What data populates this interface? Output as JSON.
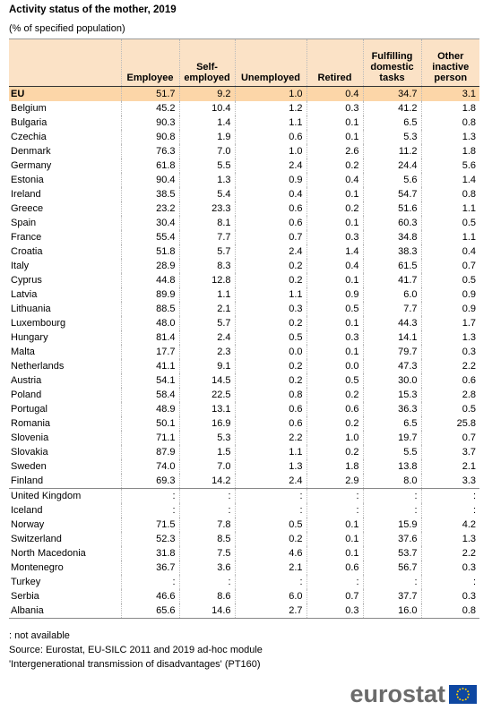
{
  "header": {
    "title": "Activity status of the mother, 2019",
    "subtitle": "(% of specified population)"
  },
  "table": {
    "columns": [
      [
        "Employee"
      ],
      [
        "Self-",
        "employed"
      ],
      [
        "Unemployed"
      ],
      [
        "Retired"
      ],
      [
        "Fulfilling",
        "domestic",
        "tasks"
      ],
      [
        "Other",
        "inactive",
        "person"
      ]
    ],
    "row_groups": [
      {
        "rows": [
          {
            "label": "EU",
            "cells": [
              "51.7",
              "9.2",
              "1.0",
              "0.4",
              "34.7",
              "3.1"
            ]
          },
          {
            "label": "Belgium",
            "cells": [
              "45.2",
              "10.4",
              "1.2",
              "0.3",
              "41.2",
              "1.8"
            ]
          },
          {
            "label": "Bulgaria",
            "cells": [
              "90.3",
              "1.4",
              "1.1",
              "0.1",
              "6.5",
              "0.8"
            ]
          },
          {
            "label": "Czechia",
            "cells": [
              "90.8",
              "1.9",
              "0.6",
              "0.1",
              "5.3",
              "1.3"
            ]
          },
          {
            "label": "Denmark",
            "cells": [
              "76.3",
              "7.0",
              "1.0",
              "2.6",
              "11.2",
              "1.8"
            ]
          },
          {
            "label": "Germany",
            "cells": [
              "61.8",
              "5.5",
              "2.4",
              "0.2",
              "24.4",
              "5.6"
            ]
          },
          {
            "label": "Estonia",
            "cells": [
              "90.4",
              "1.3",
              "0.9",
              "0.4",
              "5.6",
              "1.4"
            ]
          },
          {
            "label": "Ireland",
            "cells": [
              "38.5",
              "5.4",
              "0.4",
              "0.1",
              "54.7",
              "0.8"
            ]
          },
          {
            "label": "Greece",
            "cells": [
              "23.2",
              "23.3",
              "0.6",
              "0.2",
              "51.6",
              "1.1"
            ]
          },
          {
            "label": "Spain",
            "cells": [
              "30.4",
              "8.1",
              "0.6",
              "0.1",
              "60.3",
              "0.5"
            ]
          },
          {
            "label": "France",
            "cells": [
              "55.4",
              "7.7",
              "0.7",
              "0.3",
              "34.8",
              "1.1"
            ]
          },
          {
            "label": "Croatia",
            "cells": [
              "51.8",
              "5.7",
              "2.4",
              "1.4",
              "38.3",
              "0.4"
            ]
          },
          {
            "label": "Italy",
            "cells": [
              "28.9",
              "8.3",
              "0.2",
              "0.4",
              "61.5",
              "0.7"
            ]
          },
          {
            "label": "Cyprus",
            "cells": [
              "44.8",
              "12.8",
              "0.2",
              "0.1",
              "41.7",
              "0.5"
            ]
          },
          {
            "label": "Latvia",
            "cells": [
              "89.9",
              "1.1",
              "1.1",
              "0.9",
              "6.0",
              "0.9"
            ]
          },
          {
            "label": "Lithuania",
            "cells": [
              "88.5",
              "2.1",
              "0.3",
              "0.5",
              "7.7",
              "0.9"
            ]
          },
          {
            "label": "Luxembourg",
            "cells": [
              "48.0",
              "5.7",
              "0.2",
              "0.1",
              "44.3",
              "1.7"
            ]
          },
          {
            "label": "Hungary",
            "cells": [
              "81.4",
              "2.4",
              "0.5",
              "0.3",
              "14.1",
              "1.3"
            ]
          },
          {
            "label": "Malta",
            "cells": [
              "17.7",
              "2.3",
              "0.0",
              "0.1",
              "79.7",
              "0.3"
            ]
          },
          {
            "label": "Netherlands",
            "cells": [
              "41.1",
              "9.1",
              "0.2",
              "0.0",
              "47.3",
              "2.2"
            ]
          },
          {
            "label": "Austria",
            "cells": [
              "54.1",
              "14.5",
              "0.2",
              "0.5",
              "30.0",
              "0.6"
            ]
          },
          {
            "label": "Poland",
            "cells": [
              "58.4",
              "22.5",
              "0.8",
              "0.2",
              "15.3",
              "2.8"
            ]
          },
          {
            "label": "Portugal",
            "cells": [
              "48.9",
              "13.1",
              "0.6",
              "0.6",
              "36.3",
              "0.5"
            ]
          },
          {
            "label": "Romania",
            "cells": [
              "50.1",
              "16.9",
              "0.6",
              "0.2",
              "6.5",
              "25.8"
            ]
          },
          {
            "label": "Slovenia",
            "cells": [
              "71.1",
              "5.3",
              "2.2",
              "1.0",
              "19.7",
              "0.7"
            ]
          },
          {
            "label": "Slovakia",
            "cells": [
              "87.9",
              "1.5",
              "1.1",
              "0.2",
              "5.5",
              "3.7"
            ]
          },
          {
            "label": "Sweden",
            "cells": [
              "74.0",
              "7.0",
              "1.3",
              "1.8",
              "13.8",
              "2.1"
            ]
          },
          {
            "label": "Finland",
            "cells": [
              "69.3",
              "14.2",
              "2.4",
              "2.9",
              "8.0",
              "3.3"
            ]
          }
        ]
      },
      {
        "rows": [
          {
            "label": "United Kingdom",
            "cells": [
              ":",
              ":",
              ":",
              ":",
              ":",
              ":"
            ]
          },
          {
            "label": "Iceland",
            "cells": [
              ":",
              ":",
              ":",
              ":",
              ":",
              ":"
            ]
          },
          {
            "label": "Norway",
            "cells": [
              "71.5",
              "7.8",
              "0.5",
              "0.1",
              "15.9",
              "4.2"
            ]
          },
          {
            "label": "Switzerland",
            "cells": [
              "52.3",
              "8.5",
              "0.2",
              "0.1",
              "37.6",
              "1.3"
            ]
          },
          {
            "label": "North Macedonia",
            "cells": [
              "31.8",
              "7.5",
              "4.6",
              "0.1",
              "53.7",
              "2.2"
            ]
          },
          {
            "label": "Montenegro",
            "cells": [
              "36.7",
              "3.6",
              "2.1",
              "0.6",
              "56.7",
              "0.3"
            ]
          },
          {
            "label": "Turkey",
            "cells": [
              ":",
              ":",
              ":",
              ":",
              ":",
              ":"
            ]
          },
          {
            "label": "Serbia",
            "cells": [
              "46.6",
              "8.6",
              "6.0",
              "0.7",
              "37.7",
              "0.3"
            ]
          },
          {
            "label": "Albania",
            "cells": [
              "65.6",
              "14.6",
              "2.7",
              "0.3",
              "16.0",
              "0.8"
            ]
          }
        ]
      }
    ]
  },
  "footer": {
    "notes": [
      ": not available",
      "Source: Eurostat, EU-SILC 2011 and 2019 ad-hoc module",
      "'Intergenerational transmission of disadvantages'  (PT160)"
    ],
    "logo": "eurostat"
  }
}
